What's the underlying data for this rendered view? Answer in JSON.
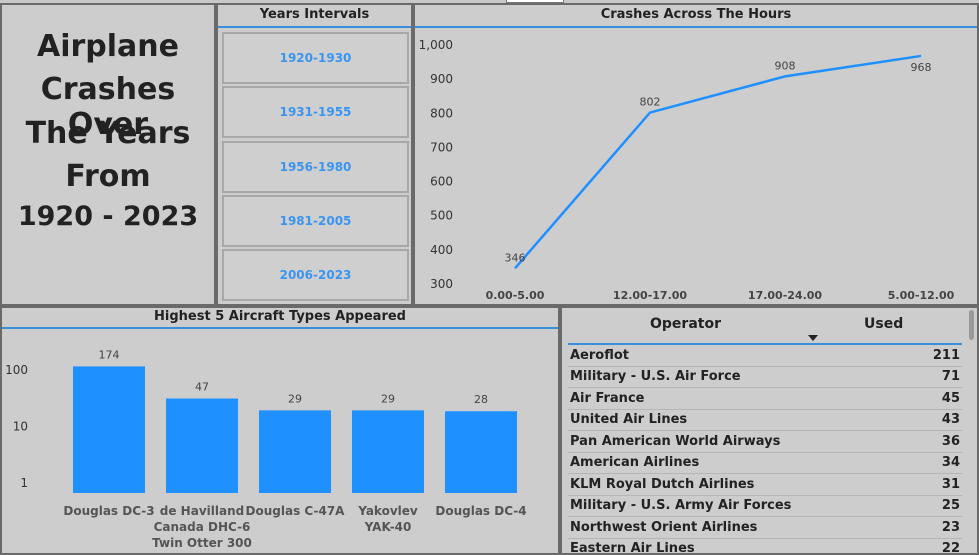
{
  "title_panel": {
    "lines": [
      "Airplane",
      "Crashes Over",
      "The Years",
      "From",
      "1920 - 2023"
    ]
  },
  "years_panel": {
    "title": "Years Intervals",
    "intervals": [
      "1920-1930",
      "1931-1955",
      "1956-1980",
      "1981-2005",
      "2006-2023"
    ]
  },
  "colors": {
    "accent": "#3a8ee0",
    "bar": "#1e90ff",
    "panel_bg": "#cdcdcd",
    "link_text": "#3b95ef"
  },
  "line_chart": {
    "title": "Crashes Across The Hours",
    "chart_data": {
      "type": "line",
      "categories": [
        "0.00-5.00",
        "12.00-17.00",
        "17.00-24.00",
        "5.00-12.00"
      ],
      "values": [
        346,
        802,
        908,
        968
      ],
      "ylim": [
        300,
        1000
      ],
      "yticks": [
        "1,000",
        "900",
        "800",
        "700",
        "600",
        "500",
        "400",
        "300"
      ],
      "ytick_values": [
        1000,
        900,
        800,
        700,
        600,
        500,
        400,
        300
      ],
      "grid": false
    }
  },
  "bar_chart": {
    "title": "Highest 5 Aircraft Types Appeared",
    "chart_data": {
      "type": "bar",
      "scale": "log",
      "categories": [
        [
          "Douglas DC-3"
        ],
        [
          "de Havilland",
          "Canada DHC-6",
          "Twin Otter 300"
        ],
        [
          "Douglas C-47A"
        ],
        [
          "Yakovlev",
          "YAK-40"
        ],
        [
          "Douglas DC-4"
        ]
      ],
      "values": [
        174,
        47,
        29,
        29,
        28
      ],
      "yticks": [
        "100",
        "10",
        "1"
      ],
      "ytick_values": [
        100,
        10,
        1
      ]
    }
  },
  "operator_table": {
    "headers": {
      "operator": "Operator",
      "used": "Used"
    },
    "rows": [
      {
        "operator": "Aeroflot",
        "used": "211"
      },
      {
        "operator": "Military - U.S. Air Force",
        "used": "71"
      },
      {
        "operator": "Air France",
        "used": "45"
      },
      {
        "operator": "United Air Lines",
        "used": "43"
      },
      {
        "operator": "Pan American World Airways",
        "used": "36"
      },
      {
        "operator": "American Airlines",
        "used": "34"
      },
      {
        "operator": "KLM Royal Dutch Airlines",
        "used": "31"
      },
      {
        "operator": "Military - U.S. Army Air Forces",
        "used": "25"
      },
      {
        "operator": "Northwest Orient Airlines",
        "used": "23"
      },
      {
        "operator": "Eastern Air Lines",
        "used": "22"
      }
    ]
  }
}
